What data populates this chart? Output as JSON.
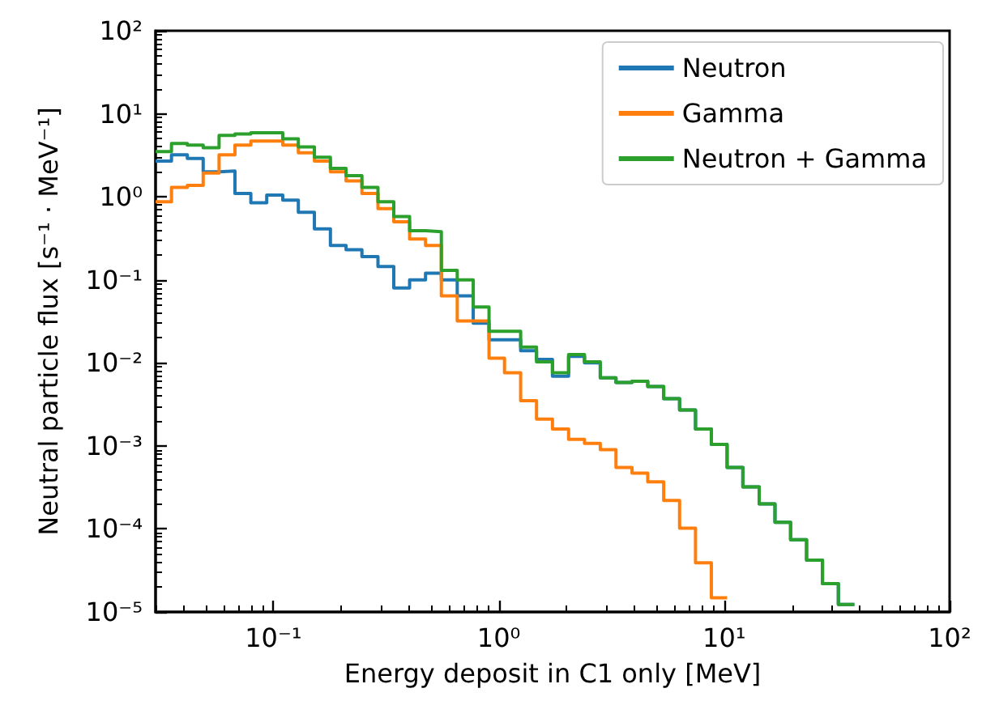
{
  "chart_data": {
    "type": "histogram",
    "xlabel": "Energy deposit in C1 only [MeV]",
    "ylabel": "Neutral particle flux [s⁻¹ · MeV⁻¹]",
    "log": "xy",
    "legend": "top right",
    "xlim": [
      0.03,
      100
    ],
    "ylim": [
      1e-05,
      100
    ],
    "xticks": [
      {
        "value": 0.1,
        "label": "10⁻¹"
      },
      {
        "value": 1,
        "label": "10⁰"
      },
      {
        "value": 10,
        "label": "10¹"
      },
      {
        "value": 100,
        "label": "10²"
      }
    ],
    "yticks": [
      {
        "value": 1e-05,
        "label": "10⁻⁵"
      },
      {
        "value": 0.0001,
        "label": "10⁻⁴"
      },
      {
        "value": 0.001,
        "label": "10⁻³"
      },
      {
        "value": 0.01,
        "label": "10⁻²"
      },
      {
        "value": 0.1,
        "label": "10⁻¹"
      },
      {
        "value": 1,
        "label": "10⁰"
      },
      {
        "value": 10,
        "label": "10¹"
      },
      {
        "value": 100,
        "label": "10²"
      }
    ],
    "bins": [
      0.03,
      0.0353,
      0.0415,
      0.0488,
      0.0574,
      0.0675,
      0.0794,
      0.0934,
      0.11,
      0.129,
      0.152,
      0.179,
      0.21,
      0.247,
      0.291,
      0.342,
      0.402,
      0.473,
      0.556,
      0.654,
      0.77,
      0.905,
      1.06,
      1.25,
      1.47,
      1.73,
      2.04,
      2.4,
      2.82,
      3.31,
      3.9,
      4.58,
      5.39,
      6.34,
      7.46,
      8.77,
      10.3,
      12.1,
      14.3,
      16.8,
      19.7,
      23.2,
      27.3,
      32.1,
      37.8
    ],
    "series": [
      {
        "name": "Neutron",
        "color": "#1f77b4",
        "values": [
          2.7,
          3.2,
          2.9,
          2.0,
          2.05,
          1.1,
          0.85,
          1.05,
          0.91,
          0.65,
          0.41,
          0.26,
          0.23,
          0.19,
          0.145,
          0.08,
          0.1,
          0.12,
          0.1,
          0.064,
          0.03,
          0.019,
          0.019,
          0.014,
          0.011,
          0.0069,
          0.012,
          0.01,
          0.0066,
          0.0058,
          0.006,
          0.0052,
          0.0037,
          0.0027,
          0.0016,
          0.00104,
          0.00055,
          0.00032,
          0.0002,
          0.00012,
          7.4e-05,
          4.2e-05,
          2.2e-05,
          1.23e-05
        ]
      },
      {
        "name": "Gamma",
        "color": "#ff7f0e",
        "bins": [
          0.03,
          0.0353,
          0.0415,
          0.0488,
          0.0574,
          0.0675,
          0.0794,
          0.0934,
          0.11,
          0.129,
          0.152,
          0.179,
          0.21,
          0.247,
          0.291,
          0.342,
          0.402,
          0.473,
          0.556,
          0.654,
          0.77,
          0.905,
          1.06,
          1.25,
          1.47,
          1.73,
          2.04,
          2.4,
          2.82,
          3.31,
          3.9,
          4.58,
          5.39,
          6.34,
          7.46,
          8.77,
          10.3
        ],
        "values": [
          0.87,
          1.3,
          1.37,
          1.93,
          3.2,
          4.2,
          4.7,
          4.7,
          4.2,
          3.4,
          2.7,
          2.0,
          1.55,
          1.1,
          0.72,
          0.5,
          0.31,
          0.26,
          0.064,
          0.032,
          0.032,
          0.0114,
          0.0076,
          0.0035,
          0.0021,
          0.0016,
          0.0012,
          0.00107,
          0.0009,
          0.00055,
          0.00047,
          0.00037,
          0.00022,
          0.000102,
          3.9e-05,
          1.48e-05
        ]
      },
      {
        "name": "Neutron + Gamma",
        "color": "#2ca02c",
        "values": [
          3.5,
          4.4,
          4.2,
          3.9,
          5.5,
          5.7,
          5.9,
          5.9,
          5.0,
          4.0,
          3.0,
          2.2,
          1.8,
          1.3,
          0.87,
          0.58,
          0.39,
          0.38,
          0.13,
          0.1,
          0.047,
          0.024,
          0.024,
          0.0155,
          0.0103,
          0.0076,
          0.0126,
          0.0103,
          0.0066,
          0.0058,
          0.006,
          0.0052,
          0.0037,
          0.0027,
          0.0016,
          0.00104,
          0.00055,
          0.00032,
          0.0002,
          0.00012,
          7.4e-05,
          4.2e-05,
          2.2e-05,
          1.23e-05
        ]
      }
    ]
  }
}
